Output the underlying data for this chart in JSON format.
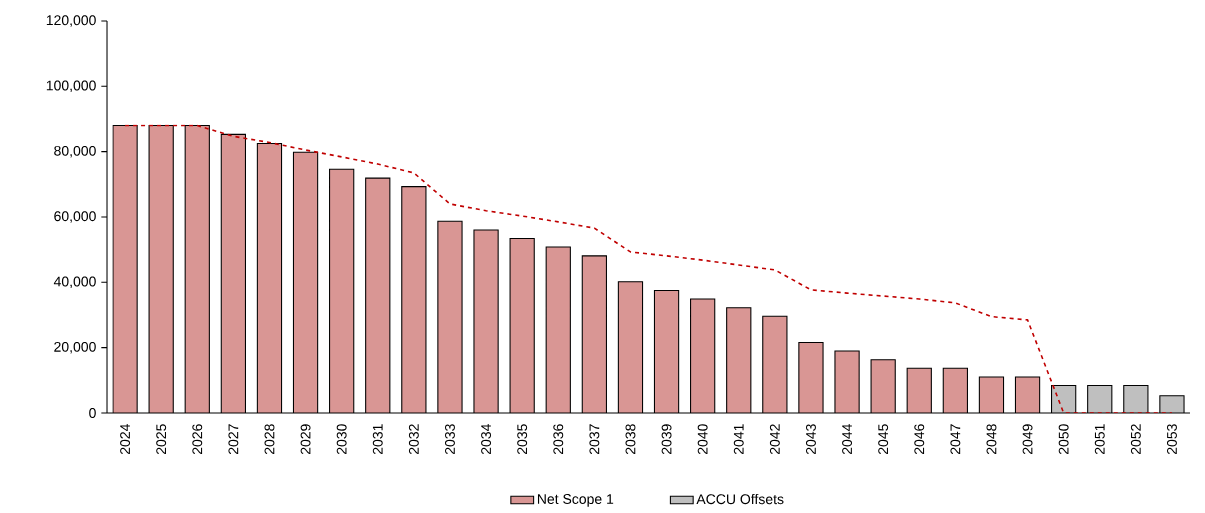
{
  "chart_data": {
    "type": "bar",
    "categories": [
      "2024",
      "2025",
      "2026",
      "2027",
      "2028",
      "2029",
      "2030",
      "2031",
      "2032",
      "2033",
      "2034",
      "2035",
      "2036",
      "2037",
      "2038",
      "2039",
      "2040",
      "2041",
      "2042",
      "2043",
      "2044",
      "2045",
      "2046",
      "2047",
      "2048",
      "2049",
      "2050",
      "2051",
      "2052",
      "2053"
    ],
    "series": [
      {
        "name": "Net Scope 1",
        "color": "#d99694",
        "values": [
          88000,
          88000,
          88000,
          85300,
          82500,
          79800,
          74600,
          71900,
          69300,
          58700,
          56000,
          53400,
          50800,
          48100,
          40200,
          37500,
          34900,
          32200,
          29600,
          21600,
          19000,
          16300,
          13700,
          13700,
          11000,
          11000,
          null,
          null,
          null,
          null
        ]
      },
      {
        "name": "ACCU Offsets",
        "color": "#bfbfbf",
        "values": [
          null,
          null,
          null,
          null,
          null,
          null,
          null,
          null,
          null,
          null,
          null,
          null,
          null,
          null,
          null,
          null,
          null,
          null,
          null,
          null,
          null,
          null,
          null,
          null,
          null,
          null,
          8400,
          8400,
          8400,
          5300
        ]
      },
      {
        "type": "line",
        "line_style": "dashed",
        "color": "#c00000",
        "values": [
          88000,
          88000,
          88000,
          84700,
          82800,
          80500,
          78400,
          76200,
          73500,
          64000,
          61900,
          60300,
          58500,
          56600,
          49300,
          48100,
          46800,
          45300,
          43800,
          37700,
          36700,
          35800,
          34900,
          33700,
          29500,
          28500,
          0,
          0,
          0,
          0
        ]
      }
    ],
    "ylim": [
      0,
      120000
    ],
    "yticks": [
      {
        "value": 0,
        "label": "0"
      },
      {
        "value": 20000,
        "label": "20,000"
      },
      {
        "value": 40000,
        "label": "40,000"
      },
      {
        "value": 60000,
        "label": "60,000"
      },
      {
        "value": 80000,
        "label": "80,000"
      },
      {
        "value": 100000,
        "label": "100,000"
      },
      {
        "value": 120000,
        "label": "120,000"
      }
    ],
    "grid": false,
    "legend": "bottom"
  }
}
